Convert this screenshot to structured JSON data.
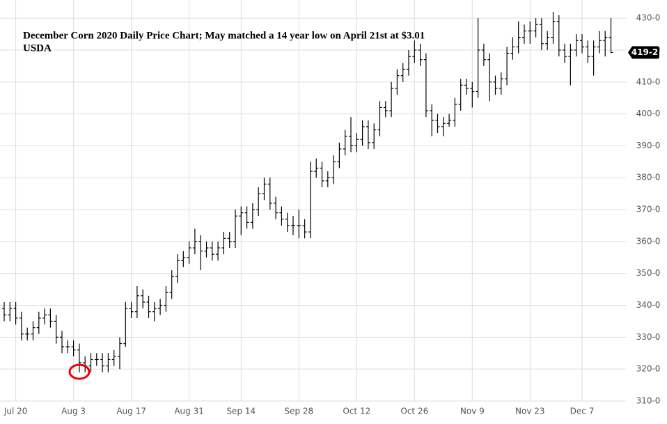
{
  "chart_data": {
    "type": "ohlc",
    "title": "December Corn 2020 Daily Price Chart; May matched a 14 year low on April 21st at $3.01",
    "subtitle": "USDA",
    "categories": [
      null,
      null,
      "Jul 20",
      null,
      null,
      null,
      null,
      null,
      null,
      null,
      null,
      null,
      "Aug 3",
      null,
      null,
      null,
      null,
      null,
      null,
      null,
      null,
      null,
      "Aug 17",
      null,
      null,
      null,
      null,
      null,
      null,
      null,
      null,
      null,
      "Aug 31",
      null,
      null,
      null,
      null,
      null,
      null,
      null,
      null,
      "Sep 14",
      null,
      null,
      null,
      null,
      null,
      null,
      null,
      null,
      null,
      "Sep 28",
      null,
      null,
      null,
      null,
      null,
      null,
      null,
      null,
      null,
      "Oct 12",
      null,
      null,
      null,
      null,
      null,
      null,
      null,
      null,
      null,
      "Oct 26",
      null,
      null,
      null,
      null,
      null,
      null,
      null,
      null,
      null,
      "Nov 9",
      null,
      null,
      null,
      null,
      null,
      null,
      null,
      null,
      null,
      "Nov 23",
      null,
      null,
      null,
      null,
      null,
      null,
      null,
      null,
      "Dec 7",
      null,
      null,
      null,
      null,
      null
    ],
    "open": [
      339,
      337,
      339,
      336,
      331,
      331,
      333,
      336,
      337,
      335,
      330,
      327,
      327,
      326,
      322,
      321,
      323,
      323,
      321,
      323,
      324,
      328,
      339,
      338,
      343,
      341,
      338,
      339,
      340,
      344,
      349,
      354,
      355,
      358,
      360,
      357,
      358,
      356,
      358,
      361,
      360,
      368,
      369,
      366,
      370,
      375,
      378,
      372,
      369,
      367,
      365,
      365,
      365,
      363,
      382,
      383,
      379,
      380,
      385,
      389,
      393,
      390,
      392,
      396,
      391,
      395,
      402,
      401,
      408,
      412,
      414,
      418,
      420,
      417,
      401,
      398,
      396,
      397,
      398,
      403,
      409,
      408,
      407,
      420,
      417,
      410,
      408,
      411,
      419,
      421,
      424,
      426,
      426,
      428,
      422,
      424,
      429,
      420,
      418,
      420,
      423,
      421,
      418,
      421,
      423,
      424
    ],
    "high": [
      341,
      341,
      341,
      338,
      333,
      335,
      338,
      339,
      339,
      337,
      332,
      329,
      329,
      328,
      324,
      325,
      325,
      325,
      325,
      326,
      330,
      341,
      341,
      346,
      345,
      343,
      341,
      342,
      346,
      351,
      356,
      357,
      360,
      364,
      362,
      360,
      360,
      360,
      363,
      363,
      370,
      371,
      371,
      372,
      377,
      380,
      380,
      374,
      371,
      369,
      368,
      370,
      367,
      385,
      386,
      385,
      382,
      387,
      391,
      395,
      399,
      394,
      398,
      398,
      397,
      404,
      404,
      410,
      414,
      416,
      420,
      423,
      422,
      419,
      403,
      400,
      399,
      400,
      405,
      411,
      411,
      410,
      430,
      422,
      419,
      412,
      413,
      421,
      424,
      429,
      428,
      429,
      430,
      430,
      426,
      432,
      431,
      422,
      422,
      425,
      425,
      423,
      423,
      426,
      426,
      430
    ],
    "low": [
      335,
      335,
      334,
      329,
      329,
      329,
      331,
      334,
      333,
      328,
      325,
      325,
      324,
      319,
      319,
      319,
      321,
      319,
      319,
      321,
      320,
      327,
      336,
      336,
      339,
      336,
      335,
      337,
      338,
      342,
      347,
      352,
      353,
      356,
      351,
      355,
      354,
      354,
      356,
      358,
      358,
      362,
      364,
      364,
      368,
      373,
      370,
      367,
      365,
      363,
      362,
      361,
      361,
      361,
      380,
      377,
      377,
      378,
      383,
      387,
      388,
      388,
      390,
      389,
      389,
      393,
      399,
      399,
      406,
      410,
      412,
      416,
      415,
      399,
      393,
      394,
      393,
      396,
      396,
      401,
      406,
      402,
      405,
      415,
      404,
      406,
      406,
      409,
      417,
      419,
      422,
      422,
      424,
      420,
      420,
      422,
      418,
      416,
      409,
      418,
      419,
      416,
      412,
      419,
      418,
      419
    ],
    "close": [
      337,
      339,
      336,
      331,
      331,
      333,
      336,
      337,
      335,
      330,
      327,
      327,
      326,
      322,
      321,
      323,
      323,
      321,
      323,
      324,
      328,
      339,
      338,
      343,
      341,
      338,
      339,
      340,
      344,
      349,
      354,
      355,
      358,
      360,
      357,
      358,
      356,
      358,
      361,
      360,
      368,
      369,
      366,
      370,
      375,
      378,
      372,
      369,
      367,
      365,
      365,
      365,
      363,
      382,
      383,
      379,
      380,
      385,
      389,
      393,
      390,
      392,
      396,
      391,
      395,
      402,
      401,
      408,
      412,
      414,
      418,
      420,
      417,
      401,
      398,
      396,
      397,
      398,
      403,
      409,
      408,
      407,
      420,
      417,
      410,
      408,
      411,
      419,
      421,
      424,
      426,
      426,
      428,
      422,
      424,
      429,
      420,
      418,
      420,
      423,
      421,
      418,
      421,
      423,
      424,
      419.25
    ],
    "last_price": {
      "value": 419.25,
      "label": "419-2"
    },
    "color": "#000000",
    "ylim": [
      310,
      435.7
    ],
    "yticks": [
      {
        "value": 310,
        "label": "310-0"
      },
      {
        "value": 320,
        "label": "320-0"
      },
      {
        "value": 330,
        "label": "330-0"
      },
      {
        "value": 340,
        "label": "340-0"
      },
      {
        "value": 350,
        "label": "350-0"
      },
      {
        "value": 360,
        "label": "360-0"
      },
      {
        "value": 370,
        "label": "370-0"
      },
      {
        "value": 380,
        "label": "380-0"
      },
      {
        "value": 390,
        "label": "390-0"
      },
      {
        "value": 400,
        "label": "400-0"
      },
      {
        "value": 410,
        "label": "410-0"
      },
      {
        "value": 420,
        "label": "420-0"
      },
      {
        "value": 430,
        "label": "430-0"
      }
    ],
    "grid": true
  }
}
